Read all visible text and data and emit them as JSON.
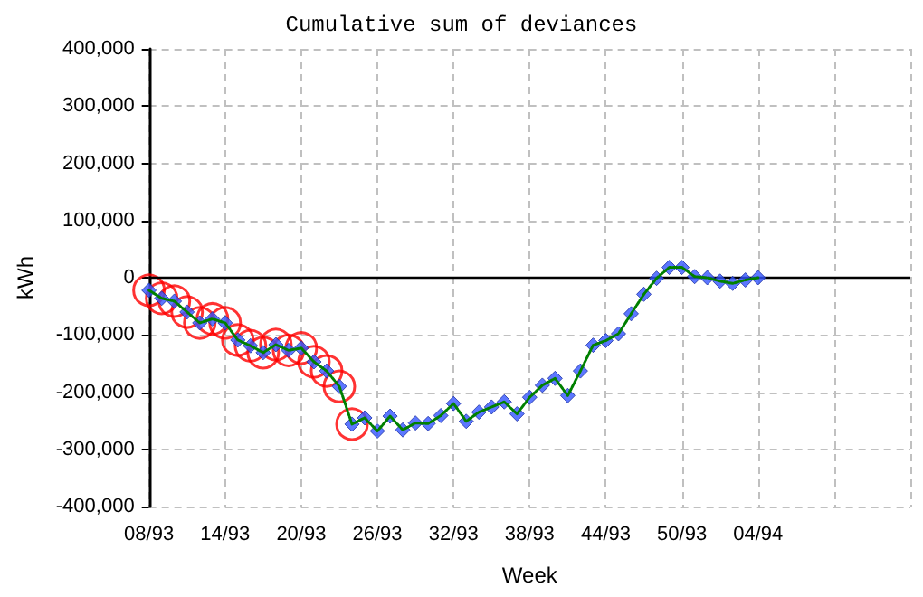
{
  "chart_data": {
    "type": "line",
    "title": "Cumulative sum of deviances",
    "xlabel": "Week",
    "ylabel": "kWh",
    "categories": [
      "08/93",
      null,
      null,
      null,
      null,
      null,
      "14/93",
      null,
      null,
      null,
      null,
      null,
      "20/93",
      null,
      null,
      null,
      null,
      null,
      "26/93",
      null,
      null,
      null,
      null,
      null,
      "32/93",
      null,
      null,
      null,
      null,
      null,
      "38/93",
      null,
      null,
      null,
      null,
      null,
      "44/93",
      null,
      null,
      null,
      null,
      null,
      "50/93",
      null,
      null,
      null,
      null,
      null,
      "04/94",
      null,
      null,
      null,
      null,
      null,
      null,
      null,
      null,
      null,
      null,
      null,
      null
    ],
    "series": [
      {
        "color": "#008000",
        "marker": "none",
        "line_style": "dotted",
        "values": [
          -22000,
          -36000,
          -41000,
          -60000,
          -79000,
          -72000,
          -79000,
          -109000,
          -119000,
          -131000,
          -117000,
          -127000,
          -123000,
          -147000,
          -163000,
          -190000,
          -256000,
          -245000,
          -268000,
          -242000,
          -266000,
          -254000,
          -255000,
          -241000,
          -220000,
          -251000,
          -235000,
          -226000,
          -217000,
          -238000,
          -209000,
          -188000,
          -176000,
          -206000,
          -163000,
          -118000,
          -110000,
          -98000,
          -63000,
          -29000,
          -1000,
          18000,
          18000,
          2000,
          0,
          -6000,
          -10000,
          -4000,
          0,
          null,
          null,
          null,
          null,
          null,
          null,
          null,
          null,
          null,
          null,
          null,
          null
        ]
      },
      {
        "type": "scatter",
        "color": "#3355ff",
        "marker": "diamond",
        "values": [
          -22000,
          -36000,
          -41000,
          -60000,
          -79000,
          -72000,
          -79000,
          -109000,
          -119000,
          -131000,
          -117000,
          -127000,
          -123000,
          -147000,
          -163000,
          -190000,
          -256000,
          -245000,
          -268000,
          -242000,
          -266000,
          -254000,
          -255000,
          -241000,
          -220000,
          -251000,
          -235000,
          -226000,
          -217000,
          -238000,
          -209000,
          -188000,
          -176000,
          -206000,
          -163000,
          -118000,
          -110000,
          -98000,
          -63000,
          -29000,
          -1000,
          18000,
          18000,
          2000,
          0,
          -6000,
          -10000,
          -4000,
          0,
          null,
          null,
          null,
          null,
          null,
          null,
          null,
          null,
          null,
          null,
          null,
          null
        ]
      },
      {
        "type": "scatter",
        "color": "#ff0000",
        "marker": "circle",
        "values": [
          -22000,
          -36000,
          -41000,
          -60000,
          -79000,
          -72000,
          -79000,
          -109000,
          -119000,
          -131000,
          -117000,
          -127000,
          -123000,
          -147000,
          -163000,
          -190000,
          -256000,
          null,
          null,
          null,
          null,
          null,
          null,
          null,
          null,
          null,
          null,
          null,
          null,
          null,
          null,
          null,
          null,
          null,
          null,
          null,
          null,
          null,
          null,
          null,
          null,
          null,
          null,
          null,
          null,
          null,
          null,
          null,
          null,
          null,
          null,
          null,
          null,
          null,
          null,
          null,
          null,
          null,
          null,
          null,
          null
        ]
      }
    ],
    "ylim": [
      -400000,
      400000
    ],
    "yticks": [
      {
        "value": -400000,
        "label": "-400,000"
      },
      {
        "value": -300000,
        "label": "-300,000"
      },
      {
        "value": -200000,
        "label": "-200,000"
      },
      {
        "value": -100000,
        "label": "-100,000"
      },
      0,
      {
        "value": 100000,
        "label": "100,000"
      },
      {
        "value": 200000,
        "label": "200,000"
      },
      {
        "value": 300000,
        "label": "300,000"
      },
      {
        "value": 400000,
        "label": "400,000"
      }
    ],
    "ref_lines": [
      {
        "axis": "y",
        "value": 0,
        "color": "#000000",
        "line_style": "solid"
      }
    ],
    "grid": true
  }
}
